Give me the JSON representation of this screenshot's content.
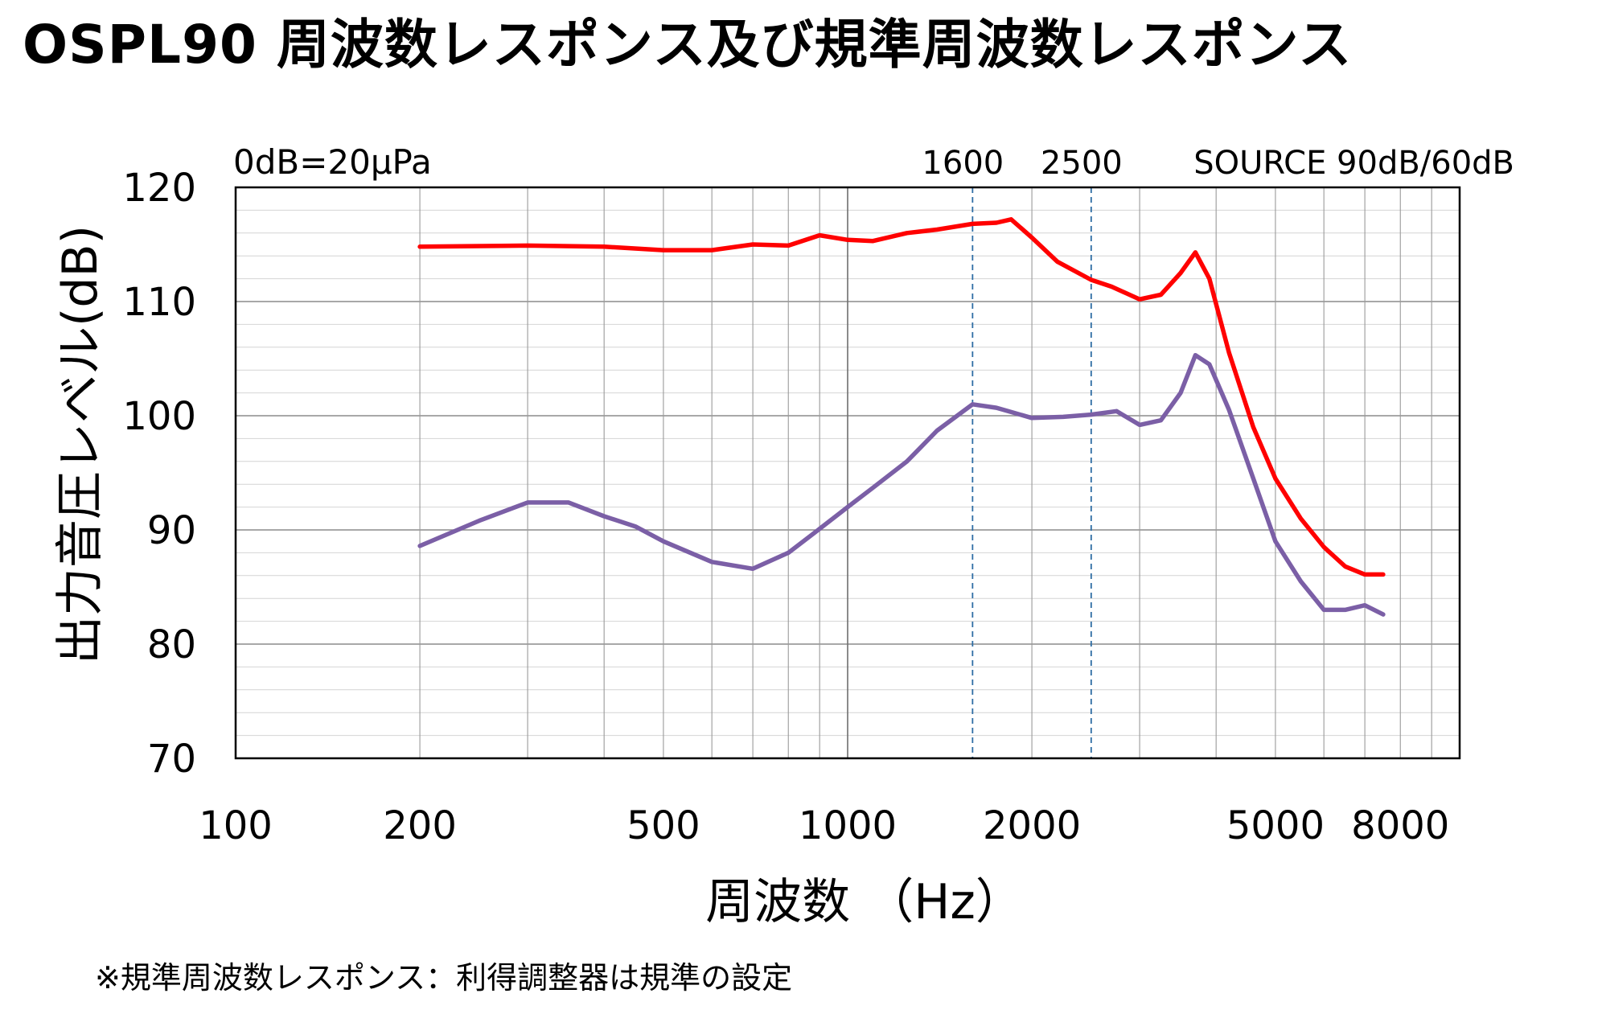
{
  "chart_data": {
    "type": "line",
    "title": "OSPL90 周波数レスポンス及び規準周波数レスポンス",
    "xlabel": "周波数 （Hz）",
    "ylabel": "出力音圧レベル(dB)",
    "x_scale": "log",
    "xlim": [
      100,
      10000
    ],
    "ylim": [
      70,
      120
    ],
    "y_ticks": [
      70,
      80,
      90,
      100,
      110,
      120
    ],
    "x_tick_labels": [
      {
        "value": 100,
        "label": "100"
      },
      {
        "value": 200,
        "label": "200"
      },
      {
        "value": 500,
        "label": "500"
      },
      {
        "value": 1000,
        "label": "1000"
      },
      {
        "value": 2000,
        "label": "2000"
      },
      {
        "value": 5000,
        "label": "5000"
      },
      {
        "value": 8000,
        "label": "8000"
      }
    ],
    "grid": true,
    "reference_lines": [
      {
        "x": 1600,
        "label": "1600"
      },
      {
        "x": 2500,
        "label": "2500"
      }
    ],
    "annotations": {
      "reference": "0dB=20μPa",
      "source": "SOURCE 90dB/60dB"
    },
    "series": [
      {
        "color": "#ff0000",
        "points": [
          [
            200,
            114.8
          ],
          [
            300,
            114.9
          ],
          [
            400,
            114.8
          ],
          [
            500,
            114.5
          ],
          [
            600,
            114.5
          ],
          [
            700,
            115.0
          ],
          [
            800,
            114.9
          ],
          [
            900,
            115.8
          ],
          [
            1000,
            115.4
          ],
          [
            1100,
            115.3
          ],
          [
            1250,
            116.0
          ],
          [
            1400,
            116.3
          ],
          [
            1600,
            116.8
          ],
          [
            1750,
            116.9
          ],
          [
            1850,
            117.2
          ],
          [
            2000,
            115.6
          ],
          [
            2200,
            113.5
          ],
          [
            2500,
            111.9
          ],
          [
            2700,
            111.3
          ],
          [
            3000,
            110.2
          ],
          [
            3250,
            110.6
          ],
          [
            3500,
            112.5
          ],
          [
            3700,
            114.3
          ],
          [
            3900,
            112.0
          ],
          [
            4200,
            105.5
          ],
          [
            4600,
            99.0
          ],
          [
            5000,
            94.5
          ],
          [
            5500,
            91.0
          ],
          [
            6000,
            88.5
          ],
          [
            6500,
            86.8
          ],
          [
            7000,
            86.1
          ],
          [
            7500,
            86.1
          ]
        ]
      },
      {
        "color": "#7b5fa6",
        "points": [
          [
            200,
            88.6
          ],
          [
            250,
            90.8
          ],
          [
            300,
            92.4
          ],
          [
            350,
            92.4
          ],
          [
            400,
            91.2
          ],
          [
            450,
            90.3
          ],
          [
            500,
            89.0
          ],
          [
            600,
            87.2
          ],
          [
            700,
            86.6
          ],
          [
            800,
            88.0
          ],
          [
            900,
            90.1
          ],
          [
            1000,
            92.0
          ],
          [
            1100,
            93.7
          ],
          [
            1250,
            96.0
          ],
          [
            1400,
            98.7
          ],
          [
            1600,
            101.0
          ],
          [
            1750,
            100.7
          ],
          [
            2000,
            99.8
          ],
          [
            2250,
            99.9
          ],
          [
            2500,
            100.1
          ],
          [
            2750,
            100.4
          ],
          [
            3000,
            99.2
          ],
          [
            3250,
            99.6
          ],
          [
            3500,
            102.0
          ],
          [
            3700,
            105.3
          ],
          [
            3900,
            104.5
          ],
          [
            4200,
            100.5
          ],
          [
            4600,
            94.5
          ],
          [
            5000,
            89.0
          ],
          [
            5500,
            85.5
          ],
          [
            6000,
            83.0
          ],
          [
            6500,
            83.0
          ],
          [
            7000,
            83.4
          ],
          [
            7500,
            82.6
          ]
        ]
      }
    ]
  },
  "footnote": "※規準周波数レスポンス：利得調整器は規準の設定"
}
